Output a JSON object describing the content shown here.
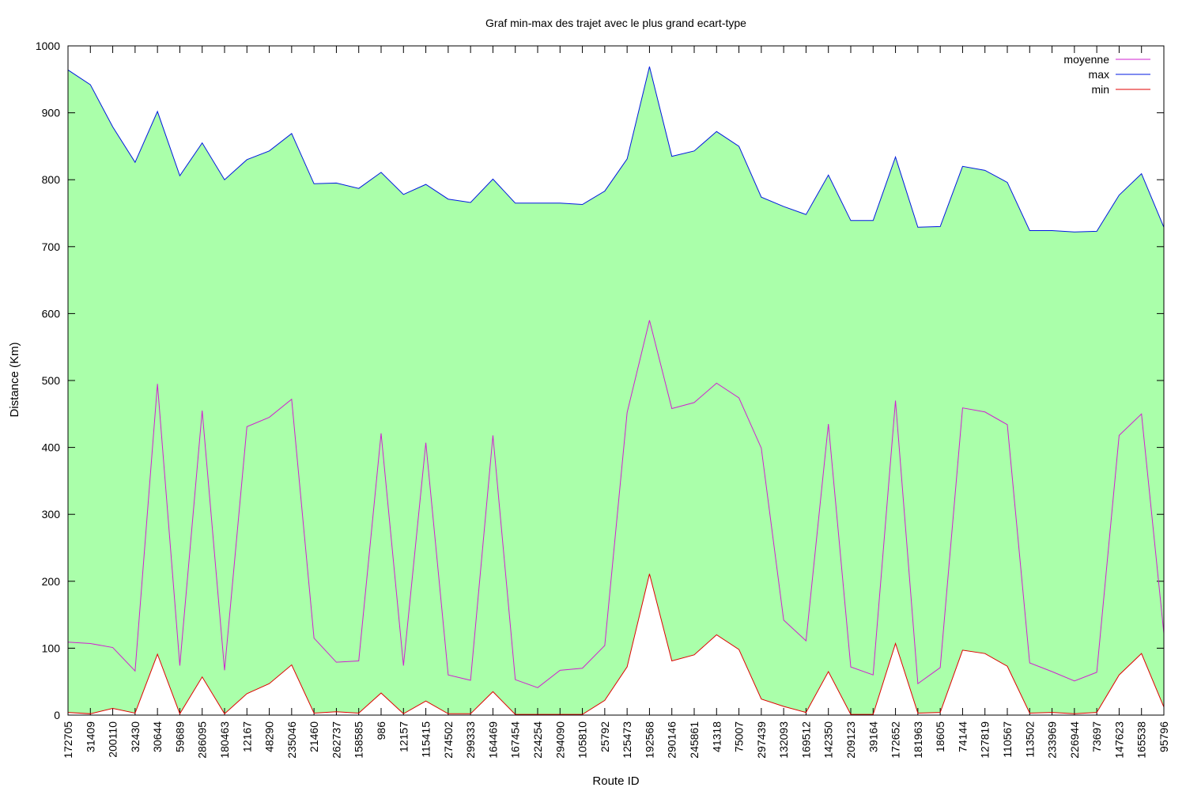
{
  "chart_data": {
    "type": "area",
    "title": "Graf min-max des trajet avec le plus grand ecart-type",
    "xlabel": "Route ID",
    "ylabel": "Distance (Km)",
    "ylim": [
      0,
      1000
    ],
    "yticks": [
      0,
      100,
      200,
      300,
      400,
      500,
      600,
      700,
      800,
      900,
      1000
    ],
    "legend_position": "top-right",
    "fill_between": {
      "lower": "min",
      "upper": "max",
      "color": "#aaffaa"
    },
    "categories": [
      "172705",
      "31409",
      "200110",
      "32430",
      "30644",
      "59689",
      "286095",
      "180463",
      "12167",
      "48290",
      "235046",
      "21460",
      "262737",
      "158585",
      "986",
      "12157",
      "115415",
      "274502",
      "299333",
      "164469",
      "167454",
      "224254",
      "294090",
      "105810",
      "25792",
      "125473",
      "192568",
      "290146",
      "245861",
      "41318",
      "75007",
      "297439",
      "132093",
      "169512",
      "142350",
      "209123",
      "39164",
      "172652",
      "181963",
      "18605",
      "74144",
      "127819",
      "110567",
      "113502",
      "233969",
      "226944",
      "73697",
      "147623",
      "165538",
      "95796"
    ],
    "series": [
      {
        "name": "moyenne",
        "color": "#d020d0",
        "values": [
          109,
          107,
          101,
          66,
          495,
          74,
          455,
          67,
          431,
          445,
          472,
          115,
          79,
          81,
          421,
          74,
          407,
          60,
          52,
          418,
          53,
          41,
          67,
          70,
          104,
          452,
          590,
          458,
          467,
          496,
          474,
          399,
          142,
          111,
          435,
          72,
          60,
          470,
          47,
          71,
          459,
          453,
          434,
          78,
          65,
          51,
          64,
          418,
          450,
          122
        ]
      },
      {
        "name": "max",
        "color": "#0018e0",
        "values": [
          964,
          942,
          879,
          826,
          902,
          806,
          855,
          800,
          830,
          843,
          869,
          794,
          795,
          787,
          811,
          778,
          793,
          771,
          766,
          801,
          765,
          765,
          765,
          763,
          783,
          831,
          969,
          835,
          843,
          872,
          850,
          774,
          760,
          748,
          807,
          739,
          739,
          834,
          729,
          730,
          820,
          814,
          796,
          724,
          724,
          722,
          723,
          777,
          809,
          729
        ]
      },
      {
        "name": "min",
        "color": "#e00000",
        "values": [
          4,
          2,
          10,
          3,
          91,
          2,
          57,
          2,
          32,
          47,
          75,
          3,
          5,
          3,
          33,
          2,
          21,
          2,
          2,
          35,
          1,
          1,
          1,
          1,
          22,
          72,
          211,
          81,
          90,
          120,
          98,
          24,
          13,
          4,
          65,
          1,
          1,
          107,
          3,
          4,
          97,
          92,
          73,
          3,
          4,
          2,
          4,
          60,
          92,
          12
        ]
      }
    ]
  }
}
